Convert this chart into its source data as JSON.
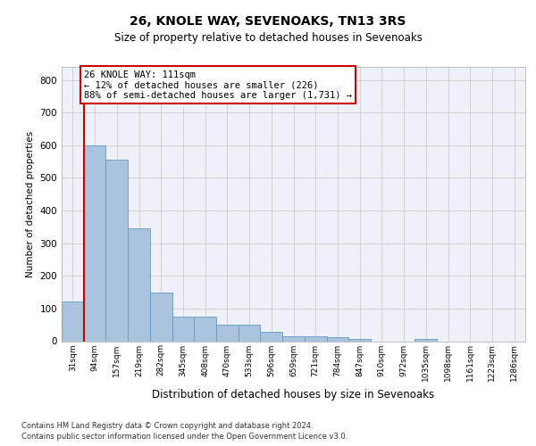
{
  "title1": "26, KNOLE WAY, SEVENOAKS, TN13 3RS",
  "title2": "Size of property relative to detached houses in Sevenoaks",
  "xlabel": "Distribution of detached houses by size in Sevenoaks",
  "ylabel": "Number of detached properties",
  "categories": [
    "31sqm",
    "94sqm",
    "157sqm",
    "219sqm",
    "282sqm",
    "345sqm",
    "408sqm",
    "470sqm",
    "533sqm",
    "596sqm",
    "659sqm",
    "721sqm",
    "784sqm",
    "847sqm",
    "910sqm",
    "972sqm",
    "1035sqm",
    "1098sqm",
    "1161sqm",
    "1223sqm",
    "1286sqm"
  ],
  "values": [
    122,
    600,
    555,
    345,
    148,
    76,
    76,
    50,
    50,
    30,
    15,
    15,
    12,
    7,
    0,
    0,
    7,
    0,
    0,
    0,
    0
  ],
  "bar_color": "#aac4df",
  "bar_edge_color": "#6699bb",
  "vline_x": 0.5,
  "vline_color": "#cc0000",
  "annotation_text": "26 KNOLE WAY: 111sqm\n← 12% of detached houses are smaller (226)\n88% of semi-detached houses are larger (1,731) →",
  "annotation_box_color": "#ffffff",
  "annotation_box_edge": "#cc0000",
  "ylim": [
    0,
    840
  ],
  "yticks": [
    0,
    100,
    200,
    300,
    400,
    500,
    600,
    700,
    800
  ],
  "grid_color": "#cccccc",
  "bg_color": "#eef2f8",
  "footer1": "Contains HM Land Registry data © Crown copyright and database right 2024.",
  "footer2": "Contains public sector information licensed under the Open Government Licence v3.0."
}
